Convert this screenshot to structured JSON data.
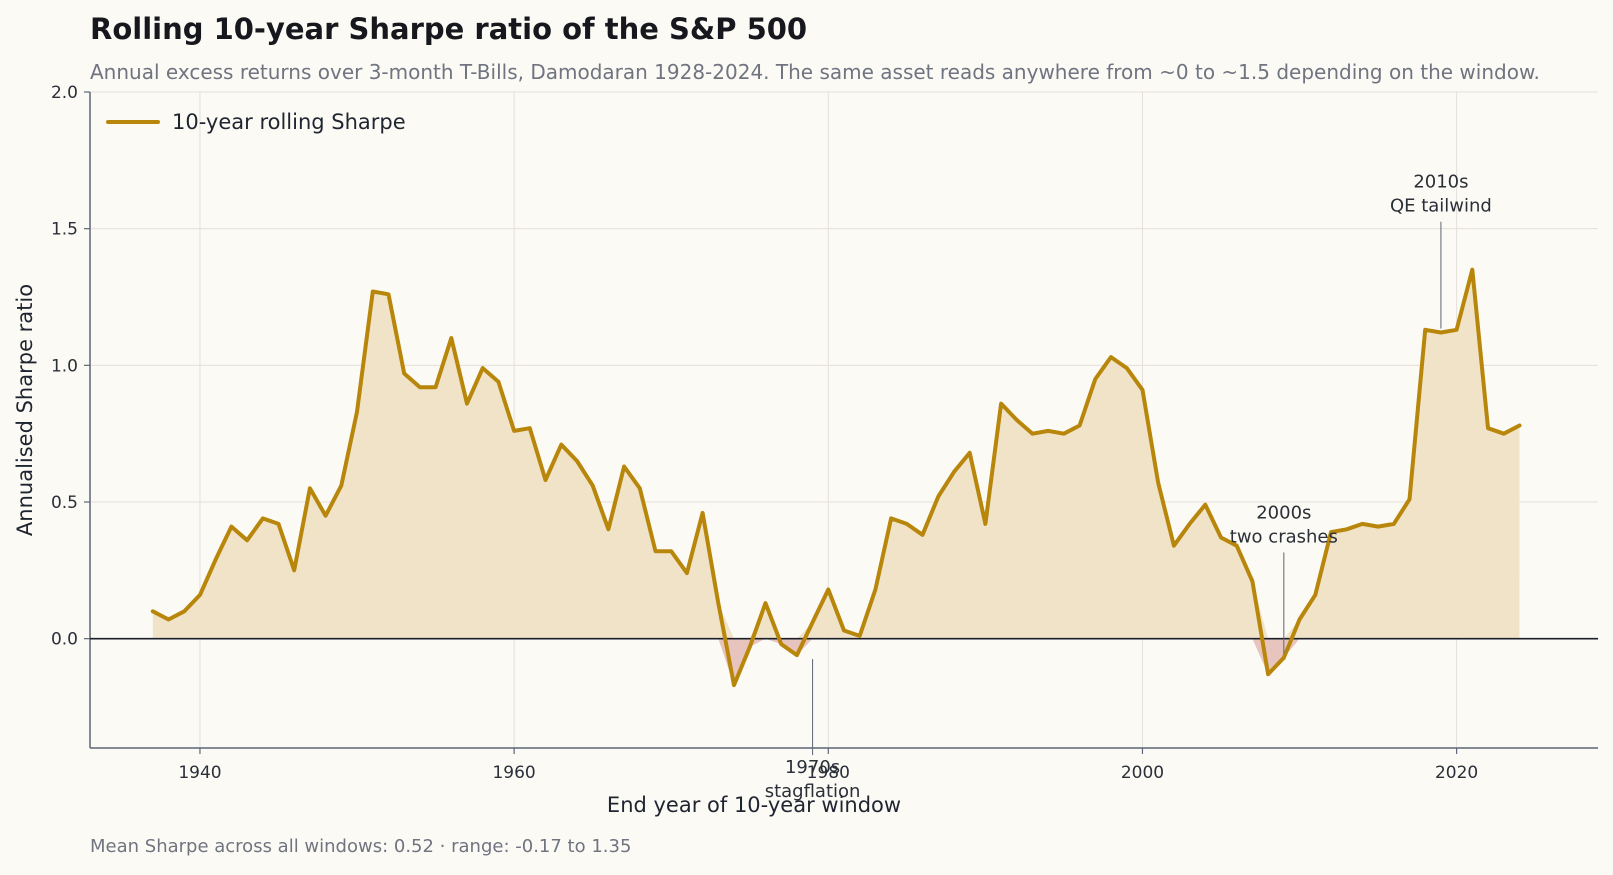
{
  "title": "Rolling 10-year Sharpe ratio of the S&P 500",
  "subtitle": "Annual excess returns over 3-month T-Bills, Damodaran 1928-2024. The same asset reads anywhere from ~0 to ~1.5 depending on the window.",
  "footer": "Mean Sharpe across all windows: 0.52  ·  range: -0.17 to 1.35",
  "colors": {
    "line": "#b8860b",
    "fill_positive": "#f0e3c7",
    "fill_negative": "#e8c4bf",
    "grid": "#e3e0d8",
    "axis": "#5d6676",
    "zero": "#1a1f2b",
    "background": "#fcfaf5"
  },
  "chart_data": {
    "type": "line",
    "title": "Rolling 10-year Sharpe ratio of the S&P 500",
    "xlabel": "End year of 10-year window",
    "ylabel": "Annualised Sharpe ratio",
    "xlim": [
      1933,
      2029
    ],
    "ylim": [
      -0.4,
      2.0
    ],
    "x_ticks": [
      1940,
      1960,
      1980,
      2000,
      2020
    ],
    "y_ticks": [
      0.0,
      0.5,
      1.0,
      1.5,
      2.0
    ],
    "y_tick_labels": [
      "0.0",
      "0.5",
      "1.0",
      "1.5",
      "2.0"
    ],
    "grid": true,
    "legend": "upper-left",
    "series": [
      {
        "name": "10-year rolling Sharpe",
        "x": [
          1937,
          1938,
          1939,
          1940,
          1941,
          1942,
          1943,
          1944,
          1945,
          1946,
          1947,
          1948,
          1949,
          1950,
          1951,
          1952,
          1953,
          1954,
          1955,
          1956,
          1957,
          1958,
          1959,
          1960,
          1961,
          1962,
          1963,
          1964,
          1965,
          1966,
          1967,
          1968,
          1969,
          1970,
          1971,
          1972,
          1973,
          1974,
          1975,
          1976,
          1977,
          1978,
          1979,
          1980,
          1981,
          1982,
          1983,
          1984,
          1985,
          1986,
          1987,
          1988,
          1989,
          1990,
          1991,
          1992,
          1993,
          1994,
          1995,
          1996,
          1997,
          1998,
          1999,
          2000,
          2001,
          2002,
          2003,
          2004,
          2005,
          2006,
          2007,
          2008,
          2009,
          2010,
          2011,
          2012,
          2013,
          2014,
          2015,
          2016,
          2017,
          2018,
          2019,
          2020,
          2021,
          2022,
          2023,
          2024
        ],
        "values": [
          0.1,
          0.07,
          0.1,
          0.16,
          0.29,
          0.41,
          0.36,
          0.44,
          0.42,
          0.25,
          0.55,
          0.45,
          0.56,
          0.83,
          1.27,
          1.26,
          0.97,
          0.92,
          0.92,
          1.1,
          0.86,
          0.99,
          0.94,
          0.76,
          0.77,
          0.58,
          0.71,
          0.65,
          0.56,
          0.4,
          0.63,
          0.55,
          0.32,
          0.32,
          0.24,
          0.46,
          0.13,
          -0.17,
          -0.03,
          0.13,
          -0.02,
          -0.06,
          0.06,
          0.18,
          0.03,
          0.01,
          0.18,
          0.44,
          0.42,
          0.38,
          0.52,
          0.61,
          0.68,
          0.42,
          0.86,
          0.8,
          0.75,
          0.76,
          0.75,
          0.78,
          0.95,
          1.03,
          0.99,
          0.91,
          0.57,
          0.34,
          0.42,
          0.49,
          0.37,
          0.34,
          0.21,
          -0.13,
          -0.07,
          0.07,
          0.16,
          0.39,
          0.4,
          0.42,
          0.41,
          0.42,
          0.51,
          1.13,
          1.12,
          1.13,
          1.35,
          0.77,
          0.75,
          0.78
        ]
      }
    ],
    "annotations": [
      {
        "lines": [
          "1970s",
          "stagflation"
        ],
        "x": 1979,
        "y": -0.06,
        "text_y": -0.47
      },
      {
        "lines": [
          "2000s",
          "two crashes"
        ],
        "x": 2009,
        "y": -0.07,
        "text_y": 0.33
      },
      {
        "lines": [
          "2010s",
          "QE tailwind"
        ],
        "x": 2019,
        "y": 1.12,
        "text_y": 1.54
      }
    ]
  }
}
